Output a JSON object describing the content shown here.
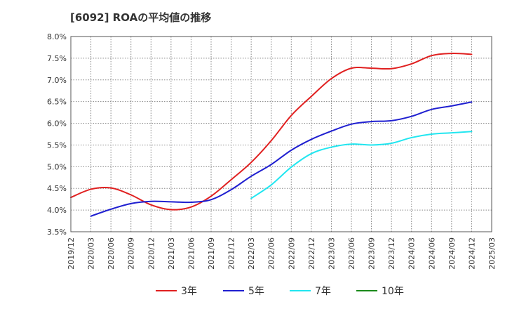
{
  "chart_data": {
    "type": "line",
    "title": "[6092]  ROAの平均値の推移",
    "xlabel": "",
    "ylabel": "",
    "x_ticks": [
      "2019/12",
      "2020/03",
      "2020/06",
      "2020/09",
      "2020/12",
      "2021/03",
      "2021/06",
      "2021/09",
      "2021/12",
      "2022/03",
      "2022/06",
      "2022/09",
      "2022/12",
      "2023/03",
      "2023/06",
      "2023/09",
      "2023/12",
      "2024/03",
      "2024/06",
      "2024/09",
      "2024/12",
      "2025/03"
    ],
    "y_ticks": [
      "3.5%",
      "4.0%",
      "4.5%",
      "5.0%",
      "5.5%",
      "6.0%",
      "6.5%",
      "7.0%",
      "7.5%",
      "8.0%"
    ],
    "ylim": [
      3.5,
      8.0
    ],
    "grid": true,
    "legend_position": "bottom",
    "series": [
      {
        "name": "3年",
        "color": "#e02020",
        "x": [
          "2019/12",
          "2020/03",
          "2020/06",
          "2020/09",
          "2020/12",
          "2021/03",
          "2021/06",
          "2021/09",
          "2021/12",
          "2022/03",
          "2022/06",
          "2022/09",
          "2022/12",
          "2023/03",
          "2023/06",
          "2023/09",
          "2023/12",
          "2024/03",
          "2024/06",
          "2024/09",
          "2024/12"
        ],
        "values": [
          4.29,
          4.48,
          4.51,
          4.35,
          4.12,
          4.01,
          4.07,
          4.32,
          4.7,
          5.1,
          5.6,
          6.18,
          6.62,
          7.03,
          7.27,
          7.27,
          7.26,
          7.37,
          7.56,
          7.61,
          7.59
        ]
      },
      {
        "name": "5年",
        "color": "#1f1fd0",
        "x": [
          "2020/03",
          "2020/06",
          "2020/09",
          "2020/12",
          "2021/03",
          "2021/06",
          "2021/09",
          "2021/12",
          "2022/03",
          "2022/06",
          "2022/09",
          "2022/12",
          "2023/03",
          "2023/06",
          "2023/09",
          "2023/12",
          "2024/03",
          "2024/06",
          "2024/09",
          "2024/12"
        ],
        "values": [
          3.86,
          4.02,
          4.15,
          4.2,
          4.19,
          4.18,
          4.24,
          4.47,
          4.78,
          5.05,
          5.38,
          5.63,
          5.82,
          5.98,
          6.04,
          6.06,
          6.16,
          6.32,
          6.4,
          6.49
        ]
      },
      {
        "name": "7年",
        "color": "#22e6f0",
        "x": [
          "2022/03",
          "2022/06",
          "2022/09",
          "2022/12",
          "2023/03",
          "2023/06",
          "2023/09",
          "2023/12",
          "2024/03",
          "2024/06",
          "2024/09",
          "2024/12"
        ],
        "values": [
          4.27,
          4.58,
          4.99,
          5.3,
          5.45,
          5.52,
          5.5,
          5.54,
          5.67,
          5.75,
          5.78,
          5.81
        ]
      },
      {
        "name": "10年",
        "color": "#1a8a1a",
        "x": [],
        "values": []
      }
    ]
  }
}
